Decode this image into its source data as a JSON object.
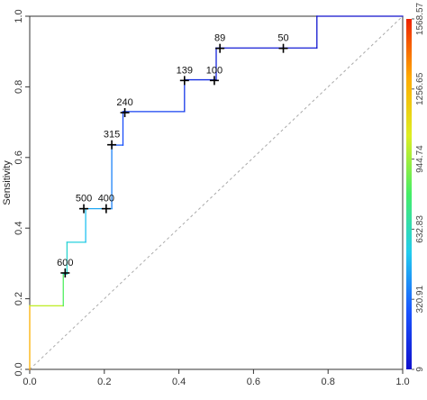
{
  "chart_data": {
    "type": "line",
    "title": "",
    "xlabel": "",
    "ylabel": "Sensitivity",
    "xlim": [
      0,
      1
    ],
    "ylim": [
      0,
      1
    ],
    "x_ticks": [
      "0.0",
      "0.2",
      "0.4",
      "0.6",
      "0.8",
      "1.0"
    ],
    "y_ticks": [
      "0.0",
      "0.2",
      "0.4",
      "0.6",
      "0.8",
      "1.0"
    ],
    "grid": false,
    "diagonal_reference": true,
    "series": [
      {
        "x": [
          0.0,
          0.0,
          0.0,
          0.09,
          0.09,
          0.1,
          0.1,
          0.15,
          0.15,
          0.22,
          0.22,
          0.25,
          0.25,
          0.415,
          0.415,
          0.5,
          0.5,
          0.77,
          0.77,
          1.0
        ],
        "y": [
          0.0,
          0.0,
          0.18,
          0.18,
          0.27,
          0.27,
          0.36,
          0.36,
          0.455,
          0.455,
          0.635,
          0.635,
          0.73,
          0.73,
          0.82,
          0.82,
          0.91,
          0.91,
          1.0,
          1.0
        ],
        "color_values": [
          1568.57,
          1568.57,
          1000,
          1000,
          620,
          620,
          560,
          560,
          450,
          450,
          290,
          290,
          190,
          190,
          120,
          120,
          50,
          50,
          9,
          9
        ]
      }
    ],
    "thresholds": [
      {
        "label": "600",
        "x": 0.095,
        "y": 0.273
      },
      {
        "label": "500",
        "x": 0.145,
        "y": 0.455
      },
      {
        "label": "400",
        "x": 0.205,
        "y": 0.455
      },
      {
        "label": "315",
        "x": 0.22,
        "y": 0.636
      },
      {
        "label": "240",
        "x": 0.255,
        "y": 0.727
      },
      {
        "label": "139",
        "x": 0.415,
        "y": 0.818
      },
      {
        "label": "100",
        "x": 0.495,
        "y": 0.818
      },
      {
        "label": "89",
        "x": 0.51,
        "y": 0.909
      },
      {
        "label": "50",
        "x": 0.68,
        "y": 0.909
      }
    ],
    "colorbar": {
      "min": 9,
      "max": 1568.57,
      "ticks": [
        "9",
        "320.91",
        "632.83",
        "944.74",
        "1256.65",
        "1568.57"
      ],
      "colors": [
        "#1010cc",
        "#1a55ff",
        "#22ccee",
        "#44ee66",
        "#ddee22",
        "#ffaa00",
        "#ee2200"
      ]
    }
  }
}
